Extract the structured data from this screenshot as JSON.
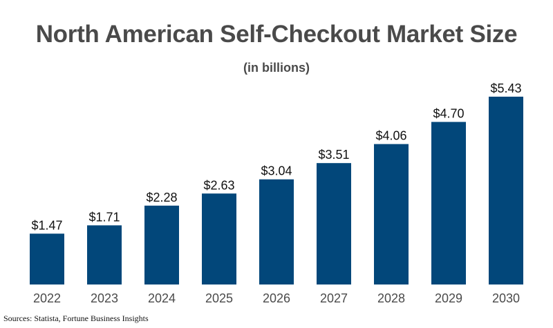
{
  "chart_data": {
    "type": "bar",
    "title": "North American Self-Checkout Market Size",
    "subtitle": "(in billions)",
    "categories": [
      "2022",
      "2023",
      "2024",
      "2025",
      "2026",
      "2027",
      "2028",
      "2029",
      "2030"
    ],
    "values": [
      1.47,
      1.71,
      2.28,
      2.63,
      3.04,
      3.51,
      4.06,
      4.7,
      5.43
    ],
    "data_labels": [
      "$1.47",
      "$1.71",
      "$2.28",
      "$2.63",
      "$3.04",
      "$3.51",
      "$4.06",
      "$4.70",
      "$5.43"
    ],
    "xlabel": "",
    "ylabel": "",
    "ylim": [
      0,
      5.43
    ],
    "grid": false,
    "legend": "none",
    "bar_color": "#02477a"
  },
  "footer": {
    "source": "Sources: Statista, Fortune Business Insights"
  }
}
